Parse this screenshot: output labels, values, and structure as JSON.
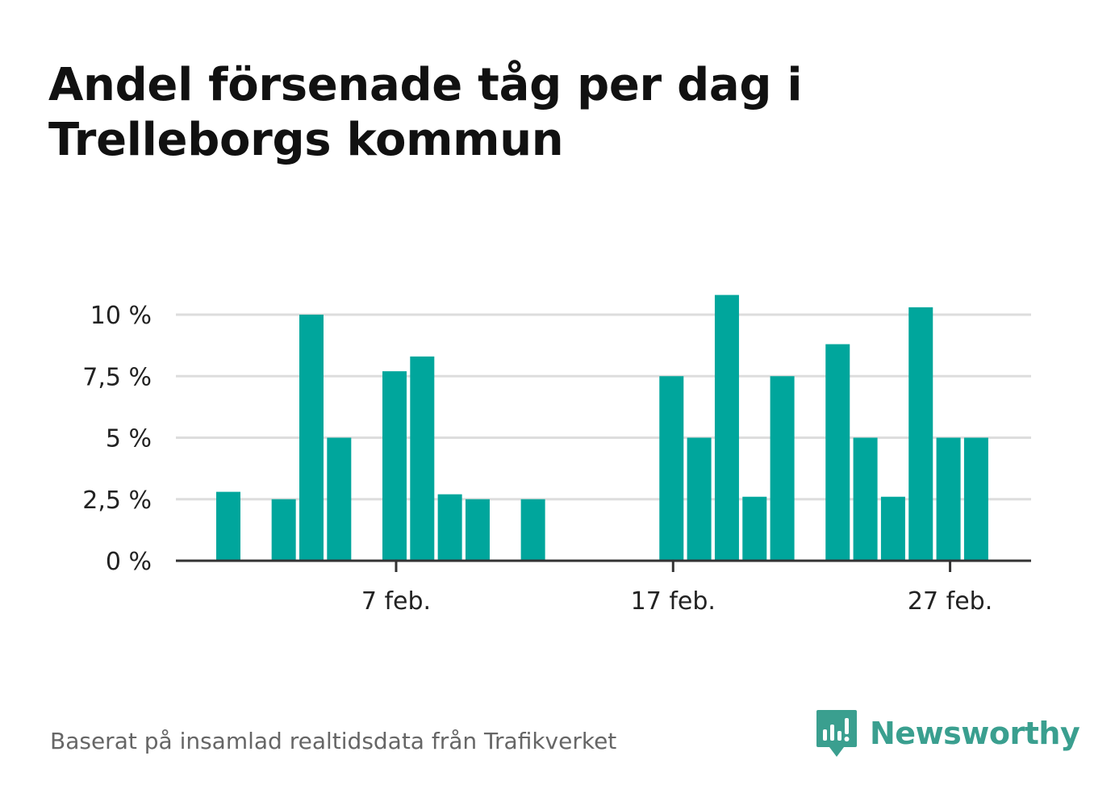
{
  "title": "Andel försenade tåg per dag i Trelleborgs kommun",
  "source": "Baserat på insamlad realtidsdata från Trafikverket",
  "brand": {
    "name": "Newsworthy",
    "icon": "newsworthy-logo-icon",
    "color": "#3a9f8f"
  },
  "chart_data": {
    "type": "bar",
    "x_unit": "day of February",
    "x": [
      1,
      2,
      3,
      4,
      5,
      6,
      7,
      8,
      9,
      10,
      11,
      12,
      13,
      14,
      15,
      16,
      17,
      18,
      19,
      20,
      21,
      22,
      23,
      24,
      25,
      26,
      27,
      28
    ],
    "values": [
      2.8,
      0,
      2.5,
      10.0,
      5.0,
      0,
      7.7,
      8.3,
      2.7,
      2.5,
      0,
      2.5,
      0,
      0,
      0,
      0,
      7.5,
      5.0,
      10.8,
      2.6,
      7.5,
      0,
      8.8,
      5.0,
      2.6,
      10.3,
      5.0,
      5.0
    ],
    "ylim": [
      0,
      10.8
    ],
    "yticks": [
      0,
      2.5,
      5,
      7.5,
      10
    ],
    "ytick_labels": [
      "0 %",
      "2,5 %",
      "5 %",
      "7,5 %",
      "10 %"
    ],
    "xticks": [
      7,
      17,
      27
    ],
    "xtick_labels": [
      "7 feb.",
      "17 feb.",
      "27 feb."
    ],
    "bar_color": "#00a69c",
    "grid": true,
    "legend": "none"
  }
}
